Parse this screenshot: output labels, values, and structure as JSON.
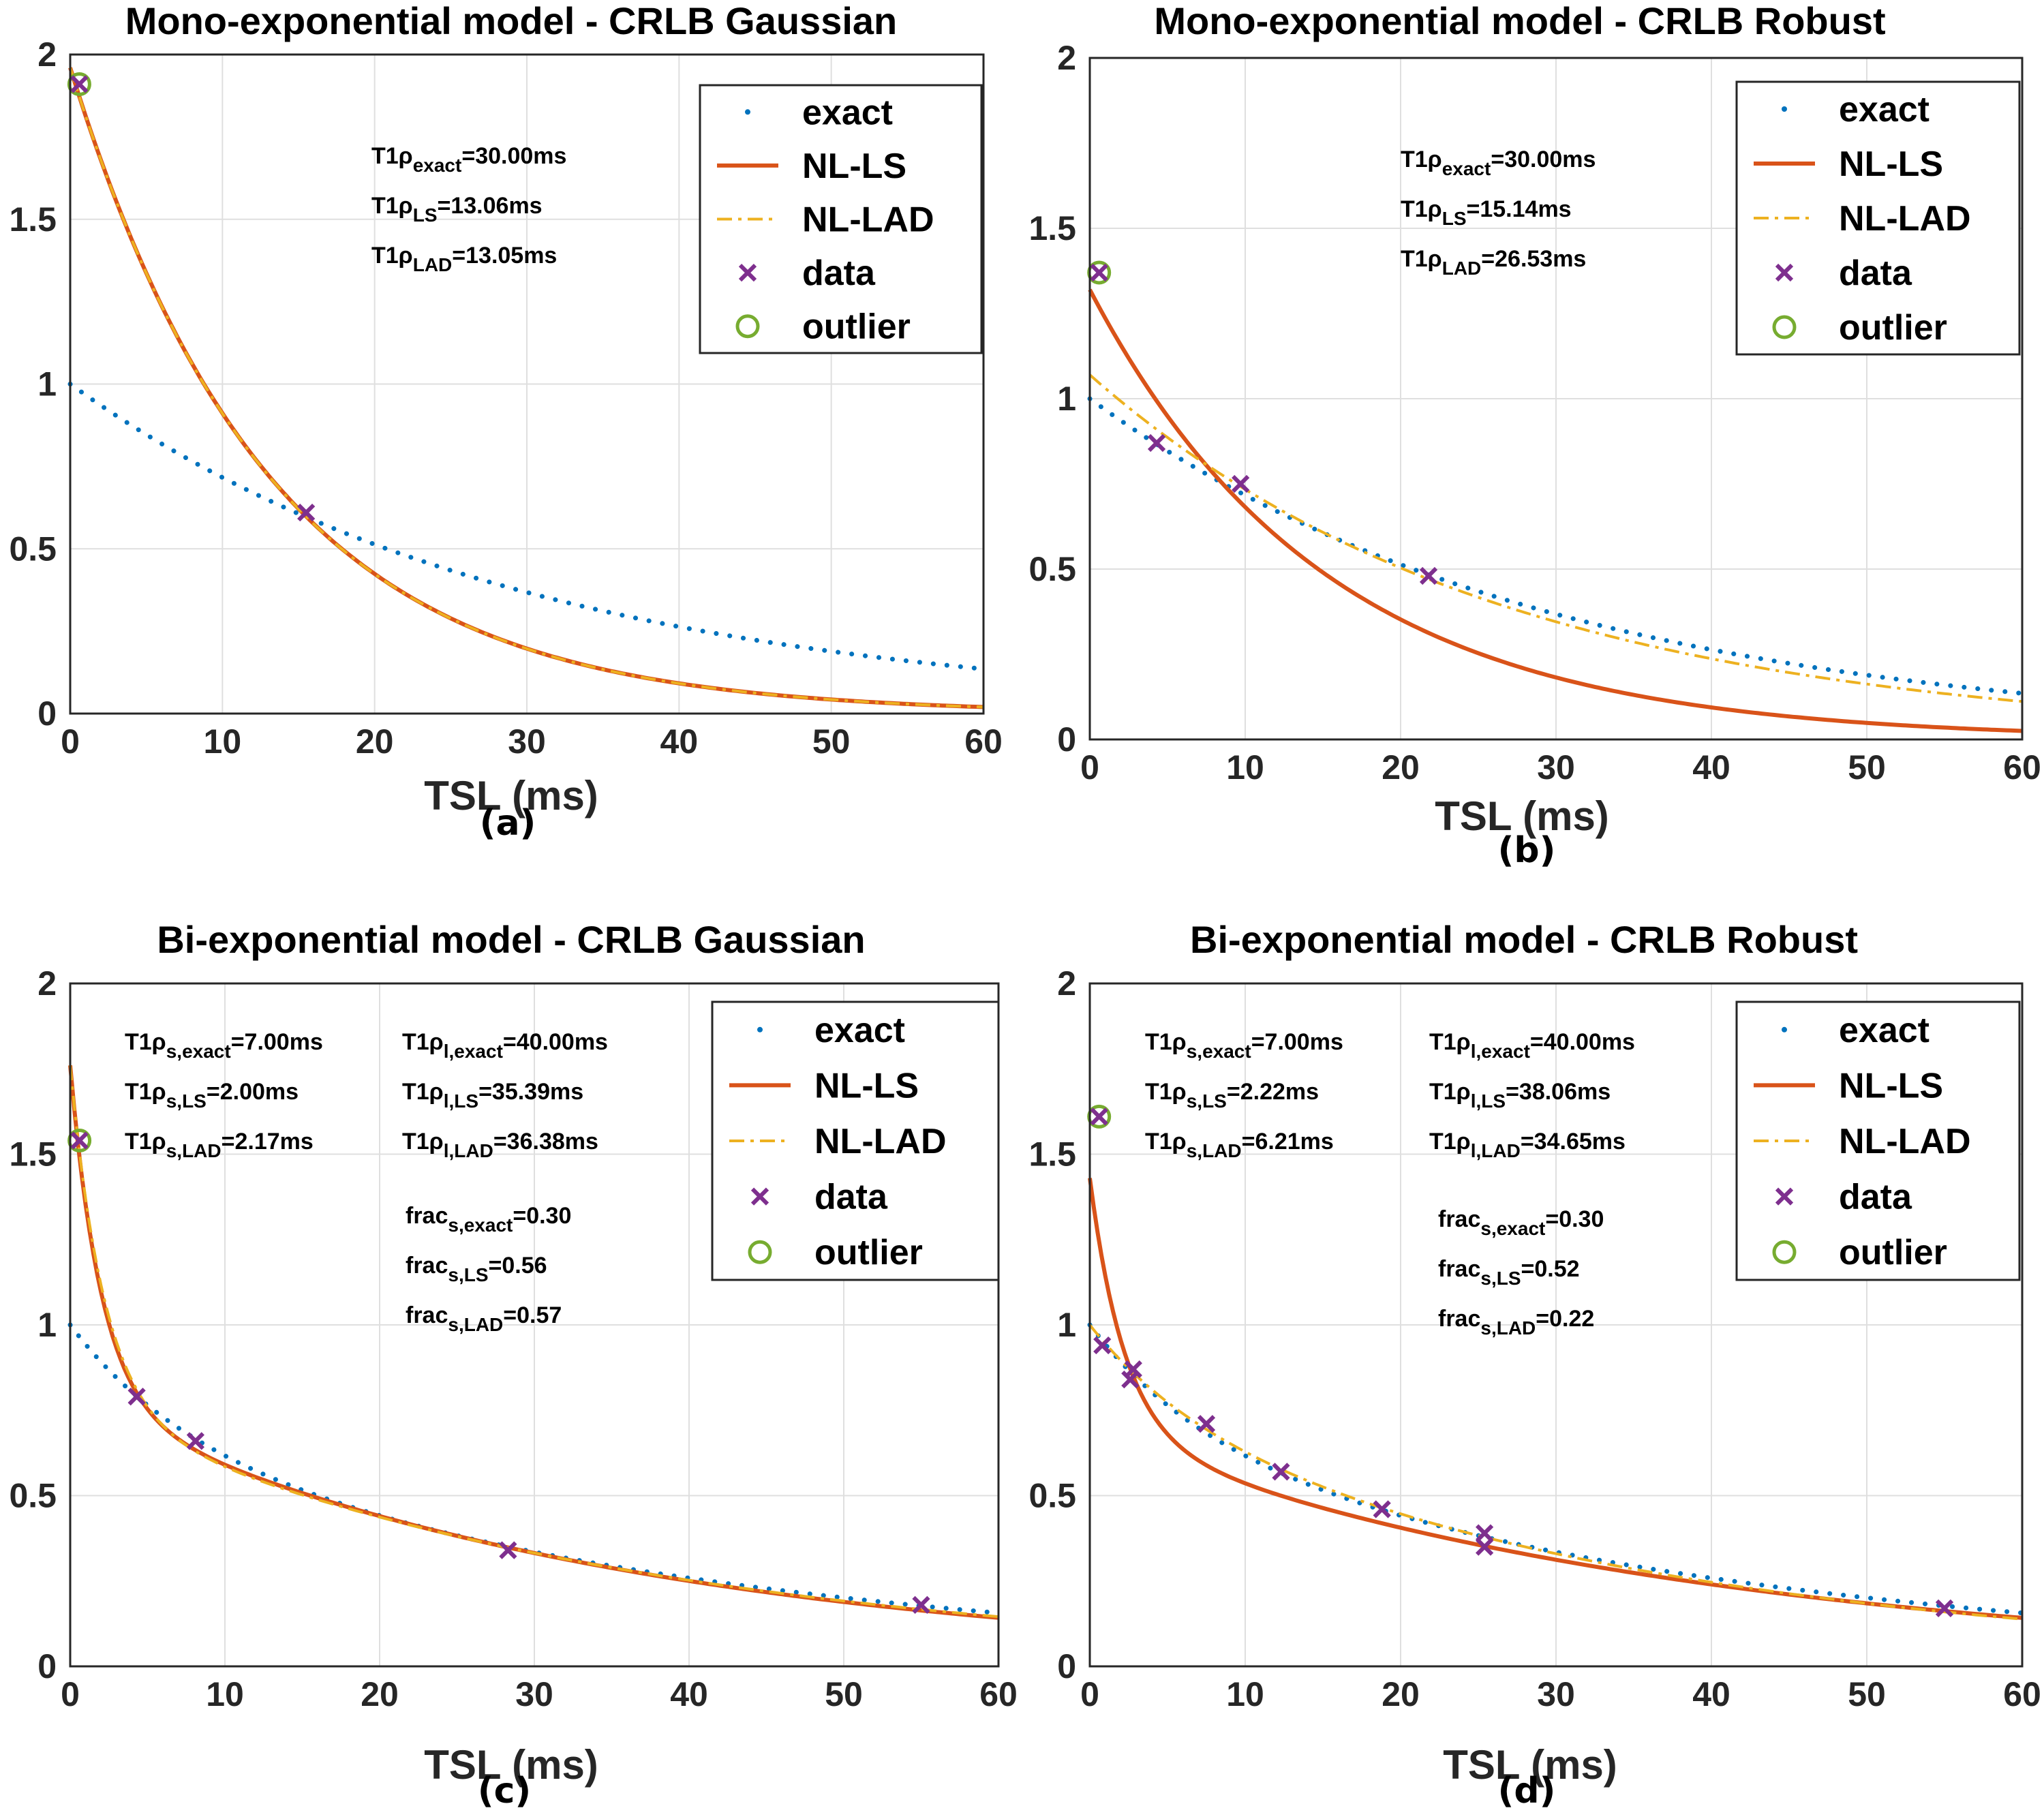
{
  "colors": {
    "exact": "#0072BD",
    "ls": "#D95319",
    "lad": "#EDB120",
    "data": "#7E2F8E",
    "outlier": "#77AC30"
  },
  "legend": [
    "exact",
    "NL-LS",
    "NL-LAD",
    "data",
    "outlier"
  ],
  "chart_data": [
    {
      "type": "line",
      "title": "Mono-exponential model - CRLB Gaussian",
      "caption": "(a)",
      "xlabel": "TSL (ms)",
      "ylabel": "",
      "xlim": [
        0,
        60
      ],
      "ylim": [
        0,
        2
      ],
      "xticks": [
        "0",
        "10",
        "20",
        "30",
        "40",
        "50",
        "60"
      ],
      "yticks": [
        "0",
        "0.5",
        "1",
        "1.5",
        "2"
      ],
      "grid": true,
      "legend_position": "top-right",
      "annotations": [
        {
          "label": "T1ρ",
          "sub": "exact",
          "value": "=30.00ms"
        },
        {
          "label": "T1ρ",
          "sub": "LS",
          "value": "=13.06ms"
        },
        {
          "label": "T1ρ",
          "sub": "LAD",
          "value": "=13.05ms"
        }
      ],
      "series": [
        {
          "name": "exact",
          "model": "mono",
          "A": 1.0,
          "T1": 30.0
        },
        {
          "name": "NL-LS",
          "model": "mono",
          "A": 1.96,
          "T1": 13.06
        },
        {
          "name": "NL-LAD",
          "model": "mono",
          "A": 1.96,
          "T1": 13.05
        }
      ],
      "data_points": [
        {
          "x": 0.6,
          "y": 1.91
        },
        {
          "x": 15.5,
          "y": 0.61
        }
      ],
      "outliers": [
        {
          "x": 0.6,
          "y": 1.91
        }
      ]
    },
    {
      "type": "line",
      "title": "Mono-exponential model - CRLB Robust",
      "caption": "(b)",
      "xlabel": "TSL (ms)",
      "ylabel": "",
      "xlim": [
        0,
        60
      ],
      "ylim": [
        0,
        2
      ],
      "xticks": [
        "0",
        "10",
        "20",
        "30",
        "40",
        "50",
        "60"
      ],
      "yticks": [
        "0",
        "0.5",
        "1",
        "1.5",
        "2"
      ],
      "grid": true,
      "legend_position": "top-right",
      "annotations": [
        {
          "label": "T1ρ",
          "sub": "exact",
          "value": "=30.00ms"
        },
        {
          "label": "T1ρ",
          "sub": "LS",
          "value": "=15.14ms"
        },
        {
          "label": "T1ρ",
          "sub": "LAD",
          "value": "=26.53ms"
        }
      ],
      "series": [
        {
          "name": "exact",
          "model": "mono",
          "A": 1.0,
          "T1": 30.0
        },
        {
          "name": "NL-LS",
          "model": "mono",
          "A": 1.32,
          "T1": 15.14
        },
        {
          "name": "NL-LAD",
          "model": "mono",
          "A": 1.07,
          "T1": 26.53
        }
      ],
      "data_points": [
        {
          "x": 0.6,
          "y": 1.37
        },
        {
          "x": 4.3,
          "y": 0.87
        },
        {
          "x": 9.7,
          "y": 0.75
        },
        {
          "x": 21.8,
          "y": 0.48
        }
      ],
      "outliers": [
        {
          "x": 0.6,
          "y": 1.37
        }
      ]
    },
    {
      "type": "line",
      "title": "Bi-exponential model - CRLB Gaussian",
      "caption": "(c)",
      "xlabel": "TSL (ms)",
      "ylabel": "",
      "xlim": [
        0,
        60
      ],
      "ylim": [
        0,
        2
      ],
      "xticks": [
        "0",
        "10",
        "20",
        "30",
        "40",
        "50",
        "60"
      ],
      "yticks": [
        "0",
        "0.5",
        "1",
        "1.5",
        "2"
      ],
      "grid": true,
      "legend_position": "top-right",
      "annotations": [
        {
          "label": "T1ρ",
          "sub": "s,exact",
          "value": "=7.00ms"
        },
        {
          "label": "T1ρ",
          "sub": "s,LS",
          "value": "=2.00ms"
        },
        {
          "label": "T1ρ",
          "sub": "s,LAD",
          "value": "=2.17ms"
        },
        {
          "label": "T1ρ",
          "sub": "l,exact",
          "value": "=40.00ms"
        },
        {
          "label": "T1ρ",
          "sub": "l,LS",
          "value": "=35.39ms"
        },
        {
          "label": "T1ρ",
          "sub": "l,LAD",
          "value": "=36.38ms"
        },
        {
          "label": "frac",
          "sub": "s,exact",
          "value": "=0.30"
        },
        {
          "label": "frac",
          "sub": "s,LS",
          "value": "=0.56"
        },
        {
          "label": "frac",
          "sub": "s,LAD",
          "value": "=0.57"
        }
      ],
      "series": [
        {
          "name": "exact",
          "model": "bi",
          "A": 1.0,
          "f": 0.3,
          "Ts": 7.0,
          "Tl": 40.0
        },
        {
          "name": "NL-LS",
          "model": "bi",
          "A": 1.76,
          "f": 0.56,
          "Ts": 2.0,
          "Tl": 35.39
        },
        {
          "name": "NL-LAD",
          "model": "bi",
          "A": 1.76,
          "f": 0.57,
          "Ts": 2.17,
          "Tl": 36.38
        }
      ],
      "data_points": [
        {
          "x": 0.6,
          "y": 1.54
        },
        {
          "x": 4.3,
          "y": 0.79
        },
        {
          "x": 8.1,
          "y": 0.66
        },
        {
          "x": 28.3,
          "y": 0.34
        },
        {
          "x": 55.0,
          "y": 0.18
        }
      ],
      "outliers": [
        {
          "x": 0.6,
          "y": 1.54
        }
      ]
    },
    {
      "type": "line",
      "title": "Bi-exponential model - CRLB Robust",
      "caption": "(d)",
      "xlabel": "TSL (ms)",
      "ylabel": "",
      "xlim": [
        0,
        60
      ],
      "ylim": [
        0,
        2
      ],
      "xticks": [
        "0",
        "10",
        "20",
        "30",
        "40",
        "50",
        "60"
      ],
      "yticks": [
        "0",
        "0.5",
        "1",
        "1.5",
        "2"
      ],
      "grid": true,
      "legend_position": "top-right",
      "annotations": [
        {
          "label": "T1ρ",
          "sub": "s,exact",
          "value": "=7.00ms"
        },
        {
          "label": "T1ρ",
          "sub": "s,LS",
          "value": "=2.22ms"
        },
        {
          "label": "T1ρ",
          "sub": "s,LAD",
          "value": "=6.21ms"
        },
        {
          "label": "T1ρ",
          "sub": "l,exact",
          "value": "=40.00ms"
        },
        {
          "label": "T1ρ",
          "sub": "l,LS",
          "value": "=38.06ms"
        },
        {
          "label": "T1ρ",
          "sub": "l,LAD",
          "value": "=34.65ms"
        },
        {
          "label": "frac",
          "sub": "s,exact",
          "value": "=0.30"
        },
        {
          "label": "frac",
          "sub": "s,LS",
          "value": "=0.52"
        },
        {
          "label": "frac",
          "sub": "s,LAD",
          "value": "=0.22"
        }
      ],
      "series": [
        {
          "name": "exact",
          "model": "bi",
          "A": 1.0,
          "f": 0.3,
          "Ts": 7.0,
          "Tl": 40.0
        },
        {
          "name": "NL-LS",
          "model": "bi",
          "A": 1.43,
          "f": 0.52,
          "Ts": 2.22,
          "Tl": 38.06
        },
        {
          "name": "NL-LAD",
          "model": "bi",
          "A": 1.0,
          "f": 0.22,
          "Ts": 6.21,
          "Tl": 34.65
        }
      ],
      "data_points": [
        {
          "x": 0.6,
          "y": 1.61
        },
        {
          "x": 0.8,
          "y": 0.94
        },
        {
          "x": 2.8,
          "y": 0.87
        },
        {
          "x": 2.6,
          "y": 0.84
        },
        {
          "x": 7.5,
          "y": 0.71
        },
        {
          "x": 12.3,
          "y": 0.57
        },
        {
          "x": 18.8,
          "y": 0.46
        },
        {
          "x": 25.4,
          "y": 0.39
        },
        {
          "x": 25.4,
          "y": 0.35
        },
        {
          "x": 55.0,
          "y": 0.17
        }
      ],
      "outliers": [
        {
          "x": 0.6,
          "y": 1.61
        }
      ]
    }
  ]
}
